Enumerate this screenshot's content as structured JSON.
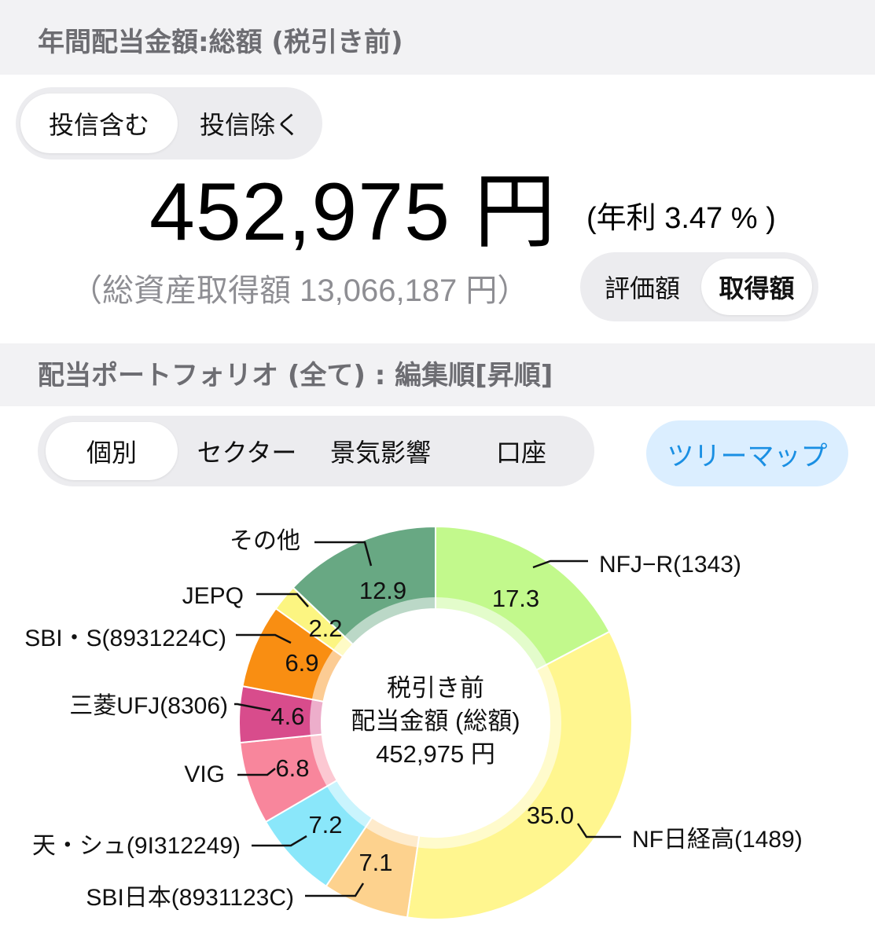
{
  "header": {
    "title": "年間配当金額:総額 (税引き前)"
  },
  "fund_toggle": {
    "include": "投信含む",
    "exclude": "投信除く",
    "selected": "投信含む"
  },
  "summary": {
    "amount": "452,975 円",
    "yield": "(年利 3.47 % )",
    "total_assets": "（総資産取得額 13,066,187 円）"
  },
  "basis_toggle": {
    "valuation": "評価額",
    "acquisition": "取得額",
    "selected": "取得額"
  },
  "portfolio_header": {
    "title": "配当ポートフォリオ (全て) : 編集順[昇順]"
  },
  "view_tabs": {
    "items": [
      "個別",
      "セクター",
      "景気影響",
      "口座"
    ],
    "selected": "個別"
  },
  "treemap_button": "ツリーマップ",
  "colors": {
    "accent": "#1a8fe3",
    "header_bg": "#f2f2f4"
  },
  "chart_data": {
    "type": "pie",
    "donut": true,
    "center_text": [
      "税引き前",
      "配当金額 (総額)",
      "452,975 円"
    ],
    "slices": [
      {
        "label": "NFJ−R(1343)",
        "value": 17.3,
        "color": "#c2f98c"
      },
      {
        "label": "NF日経高(1489)",
        "value": 35.0,
        "color": "#fff68f"
      },
      {
        "label": "SBI日本(8931123C)",
        "value": 7.1,
        "color": "#fdd28e"
      },
      {
        "label": "天・シュ(9I312249)",
        "value": 7.2,
        "color": "#8ae7fa"
      },
      {
        "label": "VIG",
        "value": 6.8,
        "color": "#f8869c"
      },
      {
        "label": "三菱UFJ(8306)",
        "value": 4.6,
        "color": "#d84c8c"
      },
      {
        "label": "SBI・S(8931224C)",
        "value": 6.9,
        "color": "#f98e12"
      },
      {
        "label": "JEPQ",
        "value": 2.2,
        "color": "#fcf581"
      },
      {
        "label": "その他",
        "value": 12.9,
        "color": "#68a883"
      }
    ]
  }
}
